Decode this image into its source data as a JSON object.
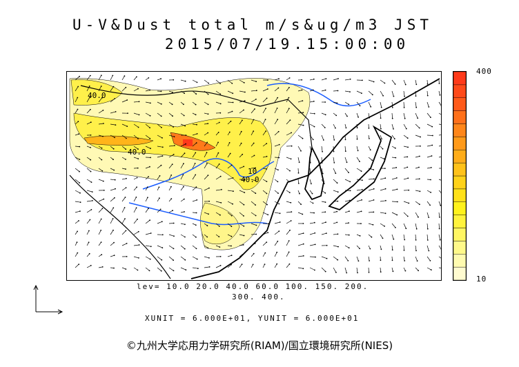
{
  "title": {
    "line1": "U-V&Dust total m/s&ug/m3 JST",
    "line2": "2015/07/19.15:00:00"
  },
  "colorbar": {
    "max_label": "400",
    "min_label": "10",
    "colors": [
      "#fffbd0",
      "#fffbb0",
      "#fff98a",
      "#fff663",
      "#fff33d",
      "#fff21c",
      "#ffe11a",
      "#ffd21a",
      "#ffc21a",
      "#ffad1a",
      "#ff9a1a",
      "#ff861a",
      "#ff701a",
      "#ff5a1a",
      "#ff4a1a",
      "#ff3a1a"
    ]
  },
  "contour_labels": [
    "40.0",
    "40.0",
    "40.0",
    "10"
  ],
  "levels": {
    "line1": "lev= 10.0 20.0 40.0 60.0 100. 150. 200.",
    "line2": "300. 400."
  },
  "units": "XUNIT = 6.000E+01, YUNIT = 6.000E+01",
  "copyright": "©九州大学応用力学研究所(RIAM)/国立環境研究所(NIES)",
  "colors": {
    "coast": "#000000",
    "river": "#1a5cff",
    "dust_light": "#fff9a0",
    "dust_mid": "#fff040",
    "dust_heavy": "#ff7a1a",
    "dust_max": "#ff3a1a"
  }
}
